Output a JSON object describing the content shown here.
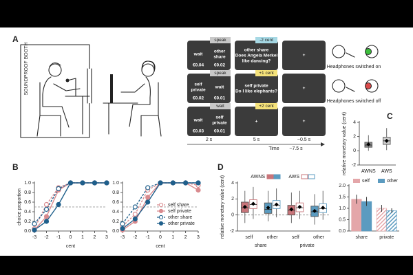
{
  "panel_labels": [
    "A",
    "B",
    "C",
    "D"
  ],
  "panel_a": {
    "booth_label": "SOUNDPROOF BOOTH",
    "trials": [
      {
        "cue": "speak",
        "left": [
          "wait"
        ],
        "right": [
          "other",
          "share"
        ],
        "left_amount": "€0.04",
        "right_amount": "€0.02",
        "feedback": "-2 cent",
        "screen2": [
          "other share",
          "Does Angela Merkel",
          "like dancing?"
        ],
        "screen3": "+"
      },
      {
        "cue": "speak",
        "left": [
          "self",
          "private"
        ],
        "right": [
          "wait"
        ],
        "left_amount": "€0.02",
        "right_amount": "€0.01",
        "feedback": "+1 cent",
        "screen2": [
          "self private",
          "Do I like elephants?"
        ],
        "screen3": "+"
      },
      {
        "cue": "wait",
        "left": [
          "wait"
        ],
        "right": [
          "self",
          "private"
        ],
        "left_amount": "€0.03",
        "right_amount": "€0.01",
        "feedback": "+2 cent",
        "screen2": [
          "+"
        ],
        "screen3": "+"
      }
    ],
    "timeline": {
      "durations": [
        "2 s",
        "5 s",
        "~0.5 s"
      ],
      "axis_label": "Time",
      "total": "~7.5 s"
    },
    "headphones": [
      "Headphones switched on",
      "Headphones switched off"
    ]
  },
  "chart_data": [
    {
      "type": "line",
      "ylabel": "choice proportion",
      "xlabel": "cent",
      "x": [
        -3,
        -2,
        -1,
        0,
        1,
        2,
        3
      ],
      "xlim": [
        -3,
        3
      ],
      "xticks": [
        -3,
        -2,
        -1,
        0,
        1,
        2,
        3
      ],
      "ylim": [
        0,
        1
      ],
      "yticks": [
        {
          "value": 0,
          "label": "0.0"
        },
        {
          "value": 0.2,
          "label": "0.2"
        },
        {
          "value": 0.4,
          "label": "0.4"
        },
        {
          "value": 0.6,
          "label": "0.6"
        },
        {
          "value": 0.8,
          "label": "0.8"
        },
        {
          "value": 1,
          "label": "1.0"
        }
      ],
      "reference_line": 0.5,
      "series": [
        {
          "name": "self share",
          "color": "#d98a8e",
          "style": "dashed",
          "marker": "open",
          "values": [
            0.05,
            0.55,
            0.9,
            1,
            1,
            1,
            1
          ]
        },
        {
          "name": "self private",
          "color": "#d98a8e",
          "style": "solid",
          "marker": "filled",
          "values": [
            0.02,
            0.3,
            0.85,
            1,
            1,
            1,
            1
          ]
        },
        {
          "name": "other share",
          "color": "#1f5f8b",
          "style": "dashed",
          "marker": "open",
          "values": [
            0.15,
            0.45,
            0.88,
            1,
            1,
            1,
            1
          ]
        },
        {
          "name": "other private",
          "color": "#1f5f8b",
          "style": "solid",
          "marker": "filled",
          "values": [
            0.02,
            0.2,
            0.55,
            1,
            1,
            1,
            1
          ]
        }
      ]
    },
    {
      "type": "line",
      "xlabel": "cent",
      "x": [
        -3,
        -2,
        -1,
        0,
        1,
        2,
        3
      ],
      "xlim": [
        -3,
        3
      ],
      "xticks": [
        -3,
        -2,
        -1,
        0,
        1,
        2,
        3
      ],
      "ylim": [
        0,
        1
      ],
      "yticks": [
        {
          "value": 0,
          "label": "0.0"
        },
        {
          "value": 0.2,
          "label": "0.2"
        },
        {
          "value": 0.4,
          "label": "0.4"
        },
        {
          "value": 0.6,
          "label": "0.6"
        },
        {
          "value": 0.8,
          "label": "0.8"
        },
        {
          "value": 1,
          "label": "1.0"
        }
      ],
      "reference_line": 0.5,
      "legend": "lower right",
      "series": [
        {
          "name": "self share",
          "color": "#d98a8e",
          "style": "dashed",
          "marker": "open",
          "values": [
            0.1,
            0.35,
            0.85,
            1,
            1,
            1,
            0.95
          ]
        },
        {
          "name": "self private",
          "color": "#d98a8e",
          "style": "solid",
          "marker": "filled",
          "values": [
            0.02,
            0.2,
            0.7,
            1,
            1,
            1,
            0.85
          ]
        },
        {
          "name": "other share",
          "color": "#1f5f8b",
          "style": "dashed",
          "marker": "open",
          "values": [
            0.15,
            0.5,
            0.9,
            1,
            1,
            1,
            1
          ]
        },
        {
          "name": "other private",
          "color": "#1f5f8b",
          "style": "solid",
          "marker": "filled",
          "values": [
            0.05,
            0.25,
            0.6,
            1,
            1,
            1,
            1
          ]
        }
      ]
    },
    {
      "type": "box",
      "ylabel": "relative monetary value (cent)",
      "categories": [
        "AWNS",
        "AWS"
      ],
      "colors": [
        "#8c8c8c",
        "#d0d0d0"
      ],
      "ylim": [
        -2,
        4
      ],
      "yticks": [
        -2,
        0,
        2,
        4
      ],
      "boxes": [
        {
          "min": 0,
          "q1": 0.5,
          "median": 0.8,
          "q3": 1.2,
          "max": 2.2,
          "mean": 0.9
        },
        {
          "min": 0.1,
          "q1": 0.9,
          "median": 1.4,
          "q3": 1.9,
          "max": 3.2,
          "mean": 1.4
        }
      ]
    },
    {
      "type": "box",
      "ylabel": "relative monetary value (cent)",
      "groups": [
        "share",
        "private"
      ],
      "categories": [
        "self",
        "other",
        "self",
        "other"
      ],
      "colors": [
        "#c9757a",
        "#5b9bc0",
        "#c9757a",
        "#5b9bc0"
      ],
      "ylim": [
        -2,
        4
      ],
      "yticks": [
        -2,
        0,
        2,
        4
      ],
      "reference_line": 0,
      "series": [
        {
          "name": "AWNS",
          "fill_style": "filled",
          "boxes": [
            {
              "min": -1,
              "q1": 0.3,
              "median": 0.9,
              "q3": 1.6,
              "max": 3,
              "mean": 1
            },
            {
              "min": -0.8,
              "q1": 0.2,
              "median": 0.7,
              "q3": 1.5,
              "max": 3,
              "mean": 0.9
            },
            {
              "min": -1,
              "q1": 0,
              "median": 0.6,
              "q3": 1.2,
              "max": 2.8,
              "mean": 0.7
            },
            {
              "min": -1.2,
              "q1": -0.2,
              "median": 0.4,
              "q3": 1.1,
              "max": 2.6,
              "mean": 0.5
            }
          ]
        },
        {
          "name": "AWS",
          "fill_style": "open",
          "boxes": [
            {
              "min": -0.5,
              "q1": 0.8,
              "median": 1.3,
              "q3": 1.9,
              "max": 3.5,
              "mean": 1.4
            },
            {
              "min": -0.3,
              "q1": 0.8,
              "median": 1.2,
              "q3": 1.8,
              "max": 3.3,
              "mean": 1.3
            },
            {
              "min": -0.5,
              "q1": 0.4,
              "median": 0.9,
              "q3": 1.5,
              "max": 3,
              "mean": 1
            },
            {
              "min": -0.6,
              "q1": 0.3,
              "median": 0.8,
              "q3": 1.4,
              "max": 3,
              "mean": 0.9
            }
          ]
        }
      ]
    },
    {
      "type": "bar",
      "categories": [
        "share",
        "private"
      ],
      "hatched": [
        false,
        true
      ],
      "ylim": [
        0,
        2
      ],
      "yticks": [
        {
          "value": 0,
          "label": "0.0"
        },
        {
          "value": 0.5,
          "label": "0.5"
        },
        {
          "value": 1,
          "label": "1.0"
        },
        {
          "value": 1.5,
          "label": "1.5"
        },
        {
          "value": 2,
          "label": "2.0"
        }
      ],
      "series": [
        {
          "name": "self",
          "color": "#e4a6a9",
          "values": [
            1.4,
            1.0
          ],
          "errors": [
            0.2,
            0.15
          ]
        },
        {
          "name": "other",
          "color": "#5b9bc0",
          "values": [
            1.3,
            0.9
          ],
          "errors": [
            0.2,
            0.1
          ]
        }
      ]
    }
  ]
}
